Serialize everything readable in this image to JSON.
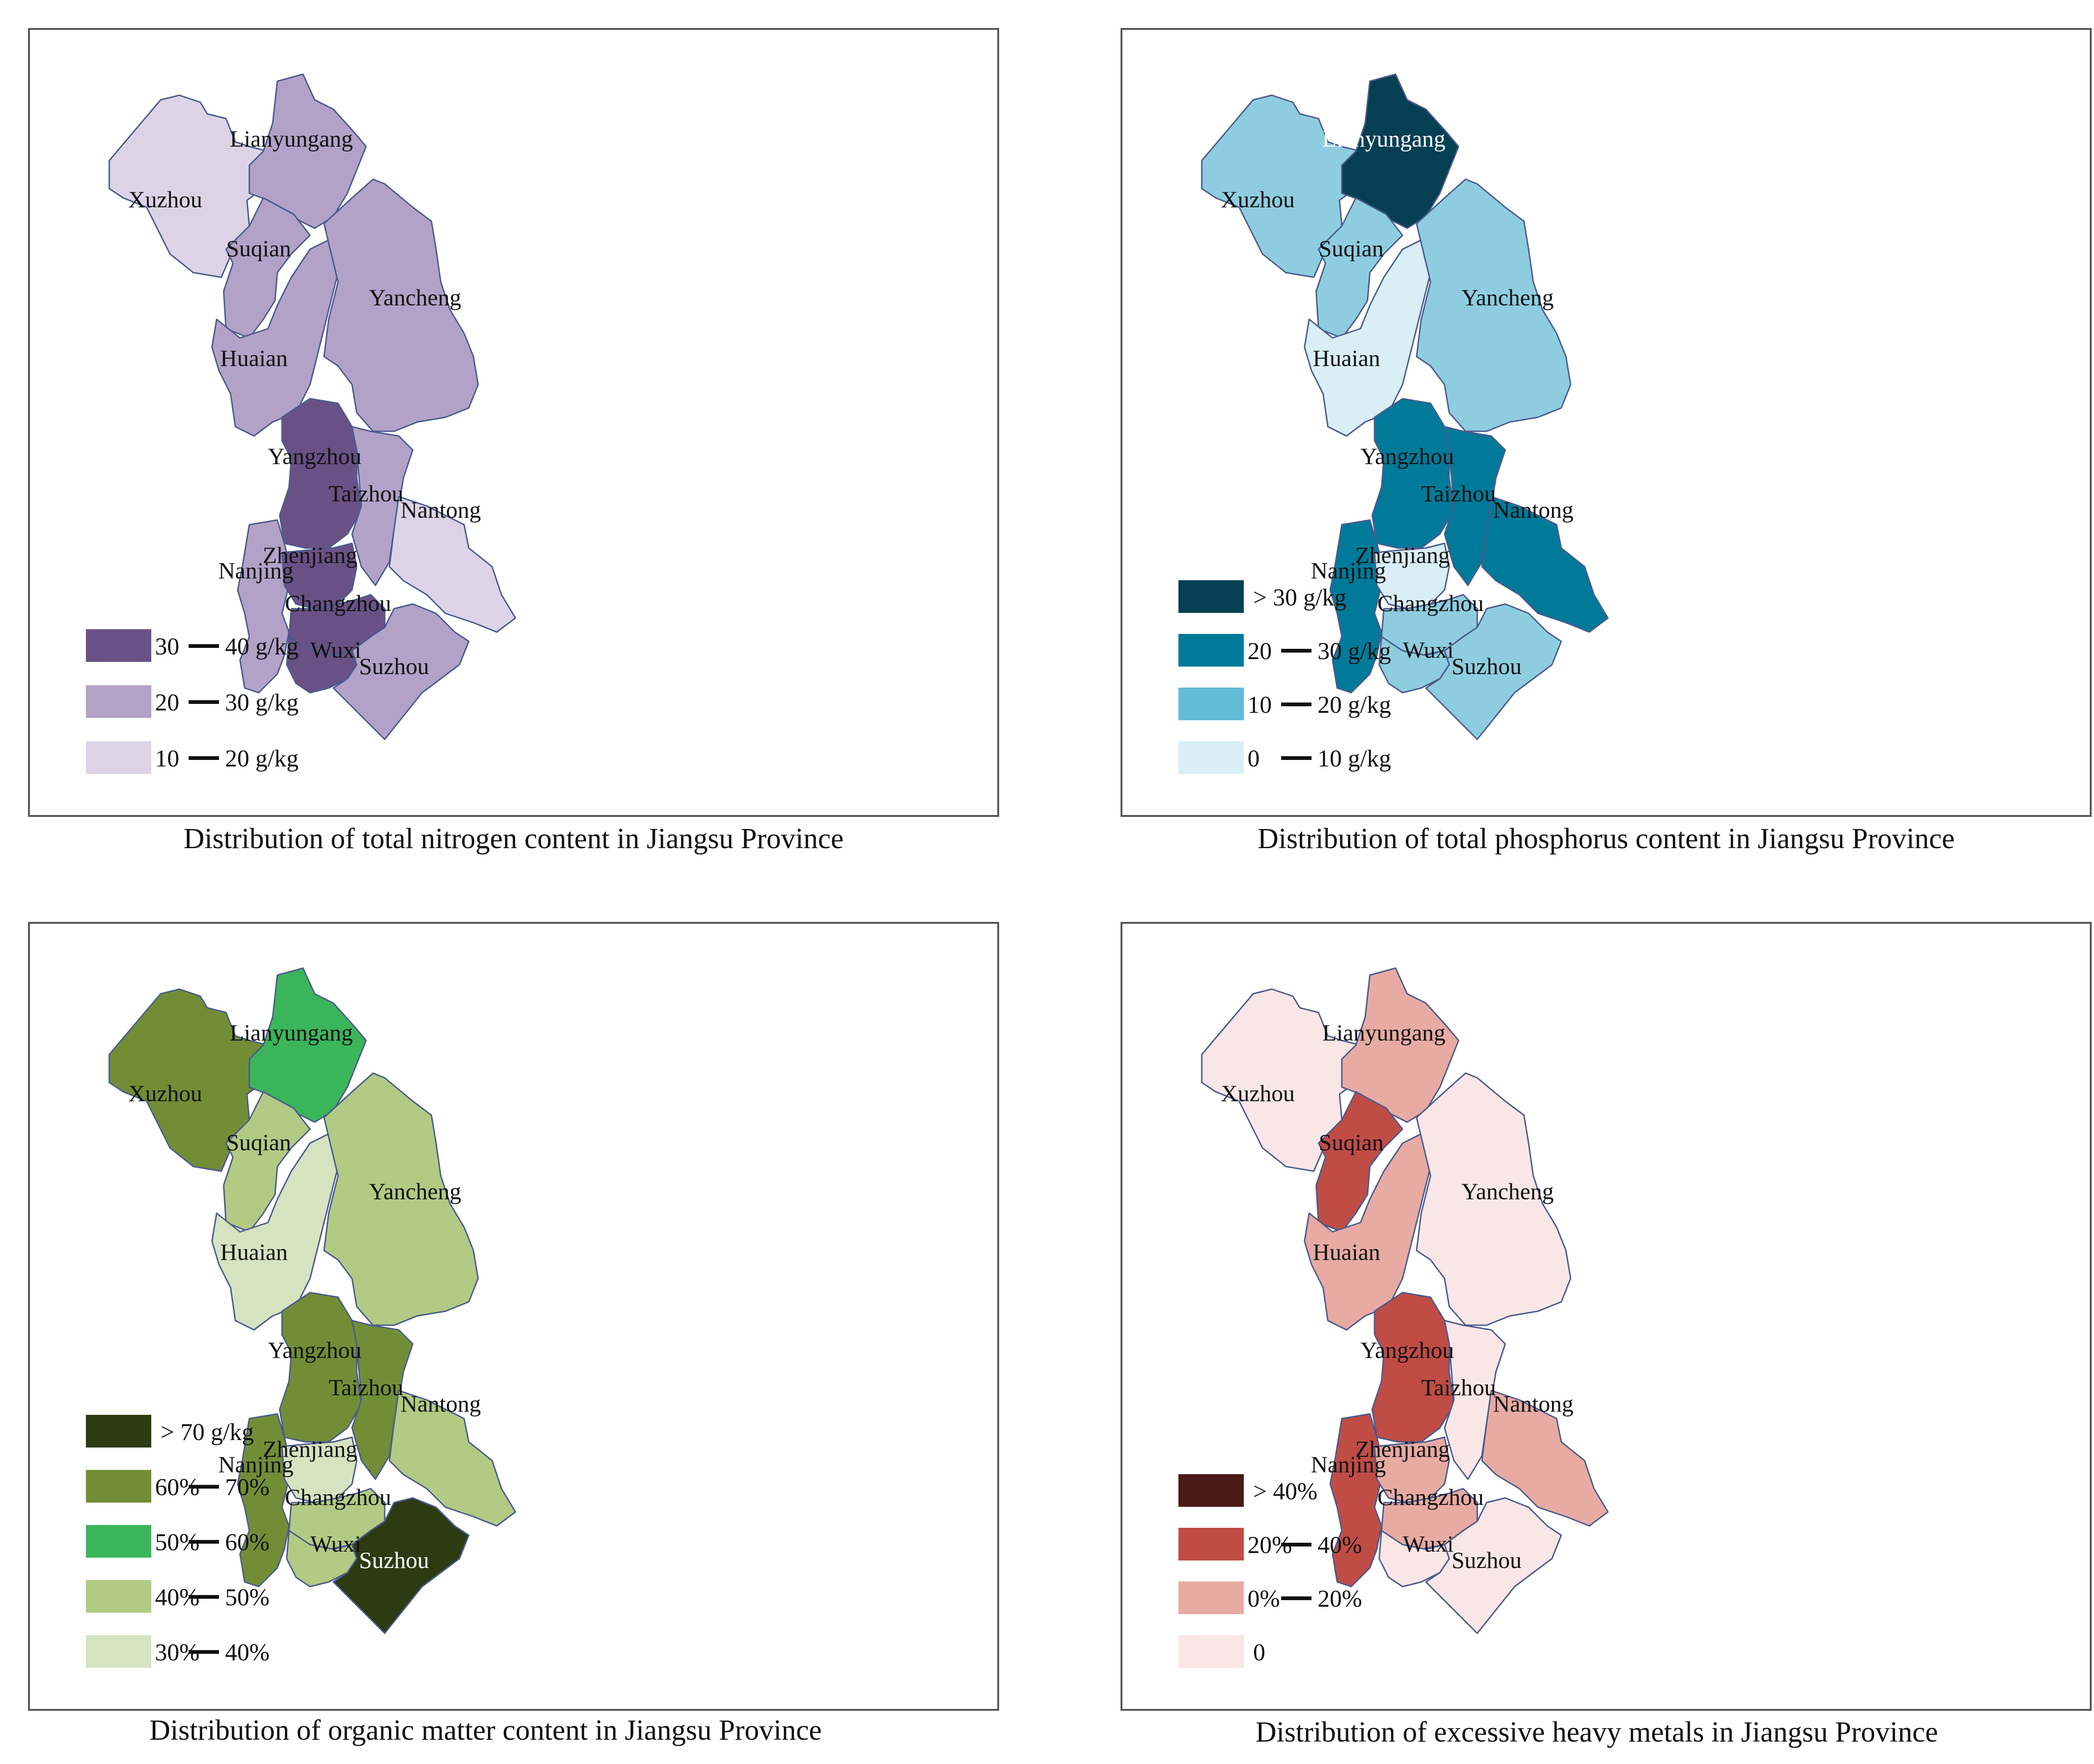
{
  "maps": [
    {
      "caption": "Distribution of total nitrogen content in Jiangsu Province",
      "legend": [
        {
          "key": "c1",
          "low": "30",
          "high": "40 g/kg",
          "color": "#6a5185"
        },
        {
          "key": "c2",
          "low": "20",
          "high": "30 g/kg",
          "color": "#b3a2c8"
        },
        {
          "key": "c3",
          "low": "10",
          "high": "20 g/kg",
          "color": "#dcd4e6"
        }
      ],
      "regions": {
        "Xuzhou": "c3",
        "Lianyungang": "c2",
        "Suqian": "c2",
        "Huaian": "c2",
        "Yancheng": "c2",
        "Yangzhou": "c1",
        "Taizhou": "c2",
        "Nantong": "c3",
        "Nanjing": "c2",
        "Zhenjiang": "c1",
        "Changzhou": "c1",
        "Wuxi": "c1",
        "Suzhou": "c2"
      },
      "white_labels": []
    },
    {
      "caption": "Distribution of total phosphorus content in Jiangsu Province",
      "legend": [
        {
          "key": "c1",
          "single": "> 30 g/kg",
          "color": "#063f52"
        },
        {
          "key": "c2",
          "low": "20",
          "high": "30 g/kg",
          "color": "#007a99"
        },
        {
          "key": "c3",
          "low": "10",
          "high": "20 g/kg",
          "color": "#62bcd8"
        },
        {
          "key": "c4",
          "low": "0",
          "high": "10 g/kg",
          "color": "#d9eef5"
        }
      ],
      "region_fills": {
        "c3b": "#8ecde0"
      },
      "regions": {
        "Xuzhou": "c3b",
        "Lianyungang": "c1",
        "Suqian": "c3b",
        "Huaian": "c4",
        "Yancheng": "c3b",
        "Yangzhou": "c2",
        "Taizhou": "c2",
        "Nantong": "c2",
        "Nanjing": "c2",
        "Zhenjiang": "c4",
        "Changzhou": "c3b",
        "Wuxi": "c3b",
        "Suzhou": "c3b"
      },
      "white_labels": [
        "Lianyungang"
      ]
    },
    {
      "caption": "Distribution of organic matter content in Jiangsu Province",
      "legend": [
        {
          "key": "c1",
          "single": "> 70 g/kg",
          "color": "#2d3b13"
        },
        {
          "key": "c2",
          "low": "60%",
          "high": "70%",
          "color": "#718e36"
        },
        {
          "key": "c3",
          "low": "50%",
          "high": "60%",
          "color": "#3bb55a"
        },
        {
          "key": "c4",
          "low": "40%",
          "high": "50%",
          "color": "#b1cb84"
        },
        {
          "key": "c5",
          "low": "30%",
          "high": "40%",
          "color": "#d6e3c1"
        }
      ],
      "regions": {
        "Xuzhou": "c2",
        "Lianyungang": "c3",
        "Suqian": "c4",
        "Huaian": "c5",
        "Yancheng": "c4",
        "Yangzhou": "c2",
        "Taizhou": "c2",
        "Nantong": "c4",
        "Nanjing": "c2",
        "Zhenjiang": "c5",
        "Changzhou": "c4",
        "Wuxi": "c4",
        "Suzhou": "c1"
      },
      "white_labels": [
        "Suzhou"
      ]
    },
    {
      "caption": "Distribution of excessive heavy metals in Jiangsu Province",
      "legend": [
        {
          "key": "c1",
          "single": "> 40%",
          "color": "#4a1a17"
        },
        {
          "key": "c2",
          "low": "20%",
          "high": "40%",
          "color": "#c04c46"
        },
        {
          "key": "c3",
          "low": "0%",
          "high": "20%",
          "color": "#e7aba3"
        },
        {
          "key": "c4",
          "single": "0",
          "color": "#f9e6e6"
        }
      ],
      "regions": {
        "Xuzhou": "c4",
        "Lianyungang": "c3",
        "Suqian": "c2",
        "Huaian": "c3",
        "Yancheng": "c4",
        "Yangzhou": "c2",
        "Taizhou": "c4",
        "Nantong": "c3",
        "Nanjing": "c2",
        "Zhenjiang": "c3",
        "Changzhou": "c3",
        "Wuxi": "c4",
        "Suzhou": "c4"
      },
      "white_labels": []
    }
  ],
  "region_names": {
    "Xuzhou": "Xuzhou",
    "Lianyungang": "Lianyungang",
    "Suqian": "Suqian",
    "Huaian": "Huaian",
    "Yancheng": "Yancheng",
    "Yangzhou": "Yangzhou",
    "Taizhou": "Taizhou",
    "Nantong": "Nantong",
    "Nanjing": "Nanjing",
    "Zhenjiang": "Zhenjiang",
    "Changzhou": "Changzhou",
    "Wuxi": "Wuxi",
    "Suzhou": "Suzhou"
  }
}
